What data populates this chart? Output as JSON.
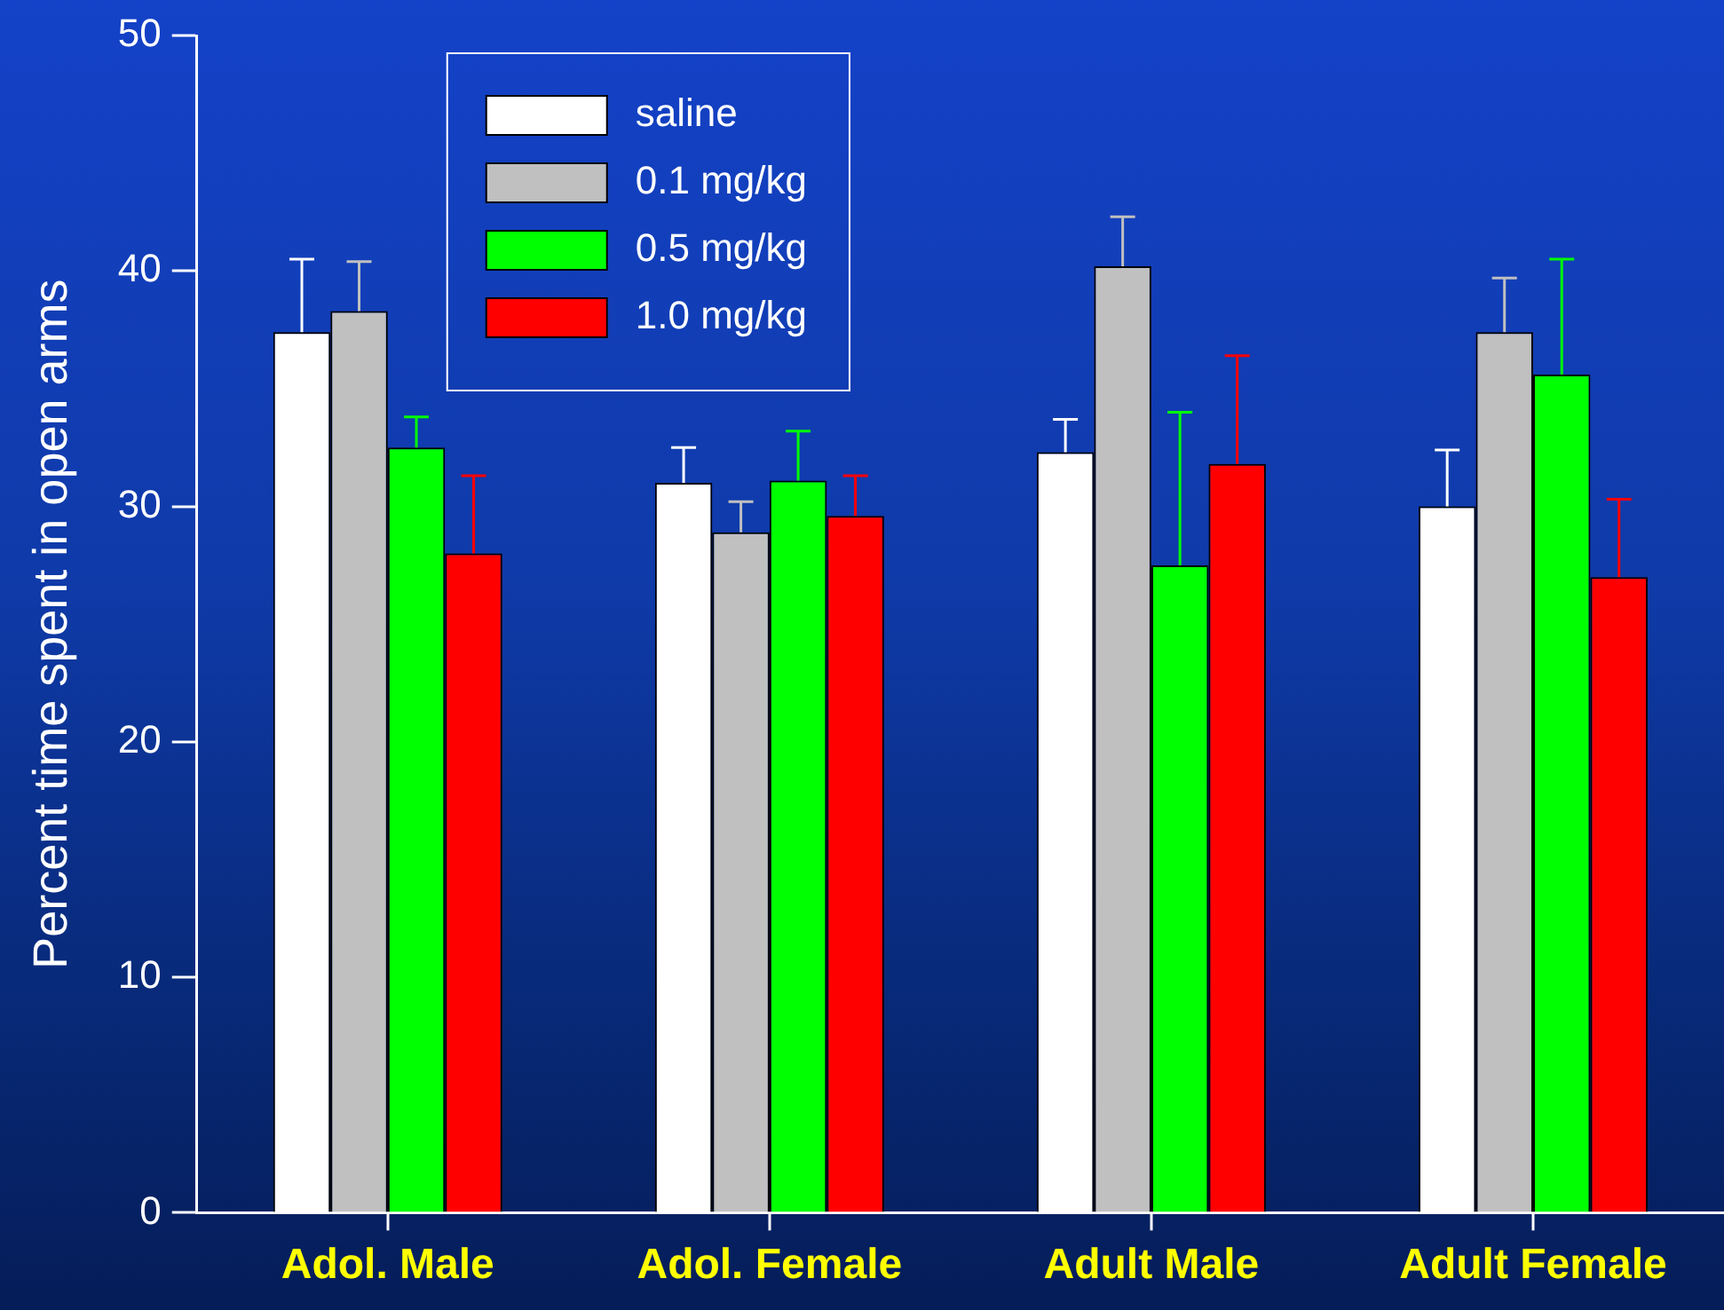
{
  "chart_data": {
    "type": "bar",
    "ylabel": "Percent time spent in open arms",
    "categories": [
      "Adol. Male",
      "Adol. Female",
      "Adult Male",
      "Adult Female"
    ],
    "series": [
      {
        "name": "saline",
        "color": "#ffffff",
        "values": [
          37.4,
          31.0,
          32.3,
          30.0
        ],
        "errors": [
          [
            37.4,
            40.5
          ],
          [
            31.0,
            32.5
          ],
          [
            32.3,
            33.7
          ],
          [
            30.0,
            32.4
          ]
        ]
      },
      {
        "name": "0.1 mg/kg",
        "color": "#c0c0c0",
        "values": [
          38.3,
          28.9,
          40.2,
          37.4
        ],
        "errors": [
          [
            38.3,
            40.4
          ],
          [
            28.9,
            30.2
          ],
          [
            40.2,
            42.3
          ],
          [
            37.4,
            39.7
          ]
        ]
      },
      {
        "name": "0.5 mg/kg",
        "color": "#00ff00",
        "values": [
          32.5,
          31.1,
          27.5,
          35.6
        ],
        "errors": [
          [
            32.5,
            33.8
          ],
          [
            31.1,
            33.2
          ],
          [
            27.5,
            34.0
          ],
          [
            35.6,
            40.5
          ]
        ]
      },
      {
        "name": "1.0 mg/kg",
        "color": "#ff0000",
        "values": [
          28.0,
          29.6,
          31.8,
          27.0
        ],
        "errors": [
          [
            28.0,
            31.3
          ],
          [
            29.6,
            31.3
          ],
          [
            31.8,
            36.4
          ],
          [
            27.0,
            30.3
          ]
        ]
      }
    ],
    "ylim": [
      0,
      50
    ],
    "yticks": [
      0,
      10,
      20,
      30,
      40,
      50
    ],
    "grid": false,
    "legend": "top left"
  }
}
